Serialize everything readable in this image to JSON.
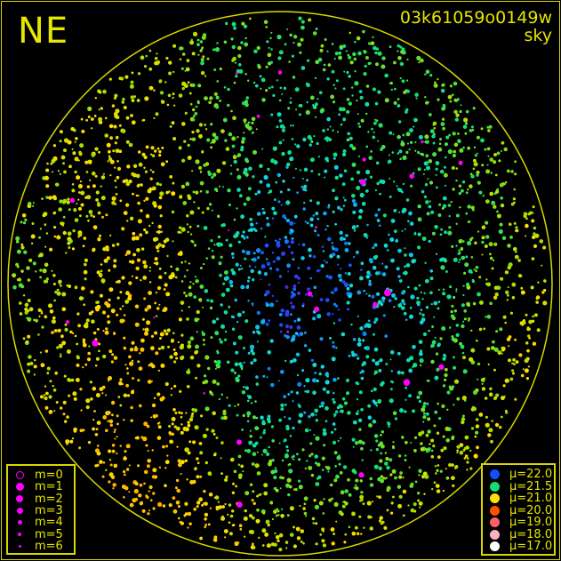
{
  "header": {
    "direction": "NE",
    "frame_id": "03k61059o0149w",
    "image_type": "sky"
  },
  "colors": {
    "frame": "#d8d800",
    "star": "#ff00ff"
  },
  "magnitude_legend": [
    {
      "label": "m=0",
      "size": 3.5,
      "hollow": true
    },
    {
      "label": "m=1",
      "size": 4.5
    },
    {
      "label": "m=2",
      "size": 4
    },
    {
      "label": "m=3",
      "size": 3.5
    },
    {
      "label": "m=4",
      "size": 2.5
    },
    {
      "label": "m=5",
      "size": 2
    },
    {
      "label": "m=6",
      "size": 1.5
    }
  ],
  "brightness_legend": [
    {
      "label": "μ=22.0",
      "mu": 22.0,
      "color": "#1050ff"
    },
    {
      "label": "μ=21.5",
      "mu": 21.5,
      "color": "#10e070"
    },
    {
      "label": "μ=21.0",
      "mu": 21.0,
      "color": "#ffe000"
    },
    {
      "label": "μ=20.0",
      "mu": 20.0,
      "color": "#ff5000"
    },
    {
      "label": "μ=19.0",
      "mu": 19.0,
      "color": "#ff6070"
    },
    {
      "label": "μ=18.0",
      "mu": 18.0,
      "color": "#ffb0c0"
    },
    {
      "label": "μ=17.0",
      "mu": 17.0,
      "color": "#ffffff"
    }
  ],
  "chart_data": {
    "type": "scatter",
    "description_of_field": "all-sky surface brightness μ (mag/arcsec²), rows north→south, columns east→west",
    "mu_grid": [
      [
        21.0,
        21.3,
        21.4,
        21.4,
        21.0
      ],
      [
        21.2,
        21.0,
        21.6,
        21.5,
        21.2
      ],
      [
        21.3,
        20.9,
        22.1,
        21.7,
        21.0
      ],
      [
        21.1,
        20.8,
        21.7,
        21.5,
        20.9
      ],
      [
        20.8,
        20.6,
        21.1,
        21.0,
        20.6
      ]
    ],
    "color_scale": [
      [
        22.3,
        "#7010d0"
      ],
      [
        22.0,
        "#1050ff"
      ],
      [
        21.75,
        "#10d8e8"
      ],
      [
        21.5,
        "#10e070"
      ],
      [
        21.25,
        "#a0e000"
      ],
      [
        21.0,
        "#ffe000"
      ],
      [
        20.5,
        "#ffa000"
      ],
      [
        20.0,
        "#ff5000"
      ]
    ]
  }
}
